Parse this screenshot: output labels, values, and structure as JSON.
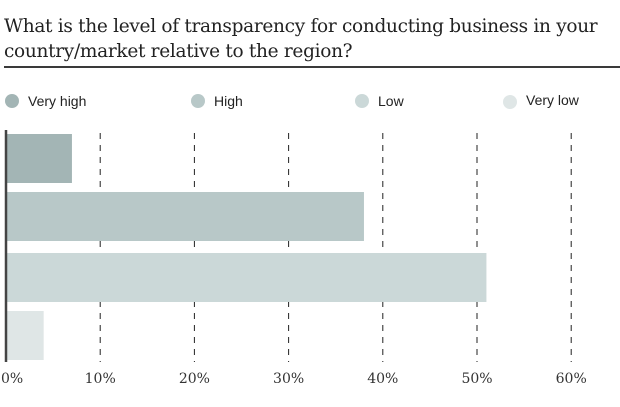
{
  "chart_data": {
    "type": "bar",
    "orientation": "horizontal",
    "title": "What is the level of transparency for conducting business in your country/market relative to the region?",
    "categories": [
      "Very high",
      "High",
      "Low",
      "Very low"
    ],
    "values": [
      7,
      38,
      51,
      4
    ],
    "colors": [
      "#a3b5b5",
      "#b8c8c8",
      "#cbd8d8",
      "#dfe6e6"
    ],
    "xlabel": "",
    "ylabel": "",
    "xlim": [
      0,
      60
    ],
    "x_ticks": [
      0,
      10,
      20,
      30,
      40,
      50,
      60
    ],
    "x_tick_labels": [
      "0%",
      "10%",
      "20%",
      "30%",
      "40%",
      "50%",
      "60%"
    ],
    "grid": "vertical dashed",
    "legend": [
      "Very high",
      "High",
      "Low",
      "Very low"
    ],
    "legend_placement": "top"
  }
}
